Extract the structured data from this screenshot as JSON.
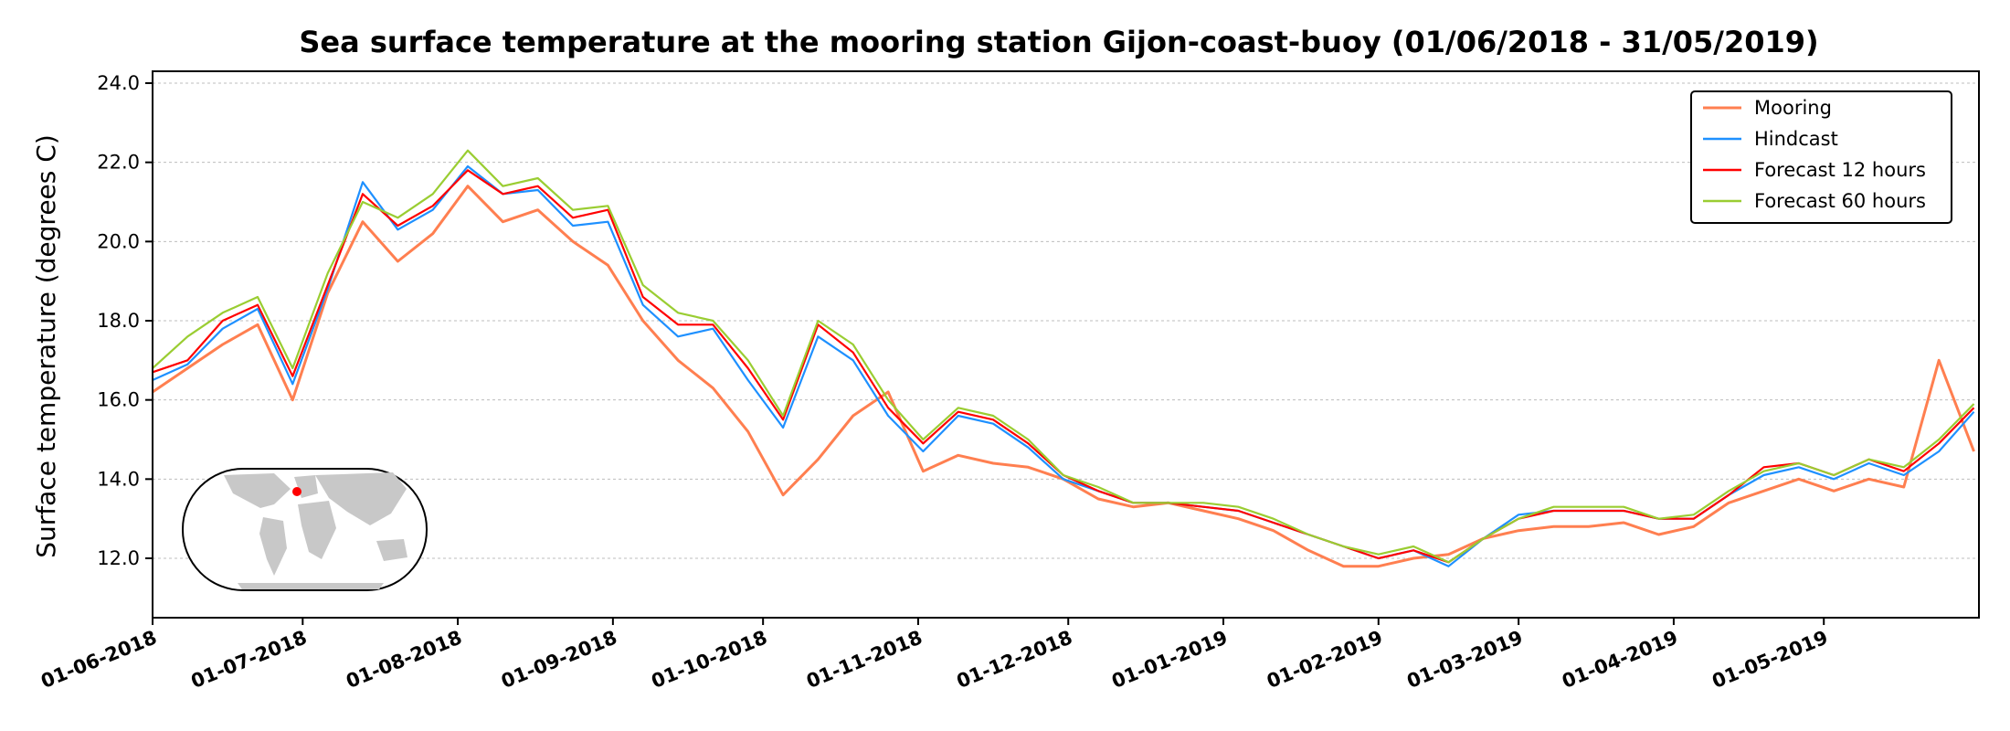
{
  "chart_data": {
    "type": "line",
    "title": "Sea surface temperature at the mooring station Gijon-coast-buoy (01/06/2018 - 31/05/2019)",
    "xlabel": "",
    "ylabel": "Surface temperature (degrees C)",
    "xlim": [
      "2018-06-01",
      "2019-06-01"
    ],
    "ylim": [
      10.5,
      24.3
    ],
    "yticks": [
      12.0,
      14.0,
      16.0,
      18.0,
      20.0,
      22.0,
      24.0
    ],
    "xticks": [
      "01-06-2018",
      "01-07-2018",
      "01-08-2018",
      "01-09-2018",
      "01-10-2018",
      "01-11-2018",
      "01-12-2018",
      "01-01-2019",
      "01-02-2019",
      "01-03-2019",
      "01-04-2019",
      "01-05-2019"
    ],
    "grid": "horizontal",
    "legend_position": "top-right",
    "colors": {
      "Mooring": "#ff7f50",
      "Hindcast": "#1e90ff",
      "Forecast 12 hours": "#ff0000",
      "Forecast 60 hours": "#9acd32"
    },
    "x": [
      "2018-06-01",
      "2018-06-08",
      "2018-06-15",
      "2018-06-22",
      "2018-06-29",
      "2018-07-06",
      "2018-07-13",
      "2018-07-20",
      "2018-07-27",
      "2018-08-03",
      "2018-08-10",
      "2018-08-17",
      "2018-08-24",
      "2018-08-31",
      "2018-09-07",
      "2018-09-14",
      "2018-09-21",
      "2018-09-28",
      "2018-10-05",
      "2018-10-12",
      "2018-10-19",
      "2018-10-26",
      "2018-11-02",
      "2018-11-09",
      "2018-11-16",
      "2018-11-23",
      "2018-11-30",
      "2018-12-07",
      "2018-12-14",
      "2018-12-21",
      "2018-12-28",
      "2019-01-04",
      "2019-01-11",
      "2019-01-18",
      "2019-01-25",
      "2019-02-01",
      "2019-02-08",
      "2019-02-15",
      "2019-02-22",
      "2019-03-01",
      "2019-03-08",
      "2019-03-15",
      "2019-03-22",
      "2019-03-29",
      "2019-04-05",
      "2019-04-12",
      "2019-04-19",
      "2019-04-26",
      "2019-05-03",
      "2019-05-10",
      "2019-05-17",
      "2019-05-24",
      "2019-05-31"
    ],
    "series": [
      {
        "name": "Mooring",
        "values": [
          16.2,
          16.8,
          17.4,
          17.9,
          16.0,
          18.7,
          20.5,
          19.5,
          20.2,
          21.4,
          20.5,
          20.8,
          20.0,
          19.4,
          18.0,
          17.0,
          16.3,
          15.2,
          13.6,
          14.5,
          15.6,
          16.2,
          14.2,
          14.6,
          14.4,
          14.3,
          14.0,
          13.5,
          13.3,
          13.4,
          13.2,
          13.0,
          12.7,
          12.2,
          11.8,
          11.8,
          12.0,
          12.1,
          12.5,
          12.7,
          12.8,
          12.8,
          12.9,
          12.6,
          12.8,
          13.4,
          13.7,
          14.0,
          13.7,
          14.0,
          13.8,
          17.0,
          14.7
        ]
      },
      {
        "name": "Hindcast",
        "values": [
          16.5,
          16.9,
          17.8,
          18.3,
          16.4,
          18.8,
          21.5,
          20.3,
          20.8,
          21.9,
          21.2,
          21.3,
          20.4,
          20.5,
          18.4,
          17.6,
          17.8,
          16.5,
          15.3,
          17.6,
          17.0,
          15.6,
          14.7,
          15.6,
          15.4,
          14.8,
          14.0,
          13.7,
          13.4,
          13.4,
          13.3,
          13.2,
          12.9,
          12.6,
          12.3,
          12.0,
          12.2,
          11.8,
          12.5,
          13.1,
          13.2,
          13.2,
          13.2,
          13.0,
          13.0,
          13.6,
          14.1,
          14.3,
          14.0,
          14.4,
          14.1,
          14.7,
          15.7
        ]
      },
      {
        "name": "Forecast 12 hours",
        "values": [
          16.7,
          17.0,
          18.0,
          18.4,
          16.6,
          18.9,
          21.2,
          20.4,
          20.9,
          21.8,
          21.2,
          21.4,
          20.6,
          20.8,
          18.6,
          17.9,
          17.9,
          16.8,
          15.5,
          17.9,
          17.2,
          15.8,
          14.9,
          15.7,
          15.5,
          14.9,
          14.1,
          13.7,
          13.4,
          13.4,
          13.3,
          13.2,
          12.9,
          12.6,
          12.3,
          12.0,
          12.2,
          11.9,
          12.5,
          13.0,
          13.2,
          13.2,
          13.2,
          13.0,
          13.0,
          13.6,
          14.3,
          14.4,
          14.1,
          14.5,
          14.2,
          14.9,
          15.8
        ]
      },
      {
        "name": "Forecast 60 hours",
        "values": [
          16.8,
          17.6,
          18.2,
          18.6,
          16.8,
          19.2,
          21.0,
          20.6,
          21.2,
          22.3,
          21.4,
          21.6,
          20.8,
          20.9,
          18.9,
          18.2,
          18.0,
          17.0,
          15.6,
          18.0,
          17.4,
          16.0,
          15.0,
          15.8,
          15.6,
          15.0,
          14.1,
          13.8,
          13.4,
          13.4,
          13.4,
          13.3,
          13.0,
          12.6,
          12.3,
          12.1,
          12.3,
          11.9,
          12.5,
          13.0,
          13.3,
          13.3,
          13.3,
          13.0,
          13.1,
          13.7,
          14.2,
          14.4,
          14.1,
          14.5,
          14.3,
          15.0,
          15.9
        ]
      }
    ]
  }
}
